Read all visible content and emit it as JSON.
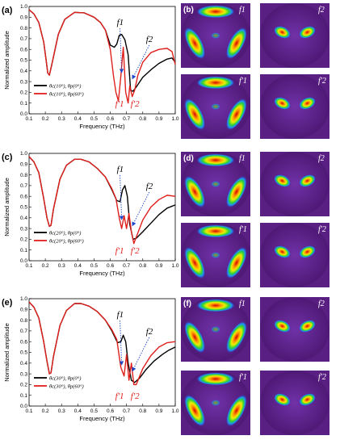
{
  "chart_data": [
    {
      "type": "line",
      "panel_label": "(a)",
      "xlabel": "Frequency (THz)",
      "ylabel": "Normalized amplitude",
      "xlim": [
        0.1,
        1.0
      ],
      "ylim": [
        0.0,
        1.0
      ],
      "xticks": [
        "0.1",
        "0.2",
        "0.3",
        "0.4",
        "0.5",
        "0.6",
        "0.7",
        "0.8",
        "0.9",
        "1.0"
      ],
      "yticks": [
        "0.0",
        "0.1",
        "0.2",
        "0.3",
        "0.4",
        "0.5",
        "0.6",
        "0.7",
        "0.8",
        "0.9",
        "1.0"
      ],
      "legend_position": "bottom-left",
      "series": [
        {
          "name": "θc(10°), θp(0°)",
          "color": "#000000",
          "x": [
            0.1,
            0.13,
            0.16,
            0.19,
            0.205,
            0.215,
            0.225,
            0.24,
            0.28,
            0.32,
            0.38,
            0.44,
            0.5,
            0.54,
            0.57,
            0.6,
            0.625,
            0.64,
            0.655,
            0.67,
            0.69,
            0.71,
            0.725,
            0.74,
            0.76,
            0.8,
            0.85,
            0.9,
            0.95,
            0.98,
            1.0
          ],
          "y": [
            0.97,
            0.93,
            0.85,
            0.67,
            0.5,
            0.38,
            0.36,
            0.46,
            0.74,
            0.88,
            0.945,
            0.94,
            0.9,
            0.85,
            0.78,
            0.64,
            0.62,
            0.65,
            0.73,
            0.74,
            0.69,
            0.55,
            0.22,
            0.21,
            0.25,
            0.34,
            0.41,
            0.47,
            0.51,
            0.52,
            0.48
          ]
        },
        {
          "name": "θc(10°), θp(60°)",
          "color": "#e0201c",
          "x": [
            0.1,
            0.13,
            0.16,
            0.19,
            0.205,
            0.215,
            0.225,
            0.24,
            0.28,
            0.32,
            0.38,
            0.44,
            0.5,
            0.54,
            0.57,
            0.6,
            0.62,
            0.635,
            0.65,
            0.665,
            0.68,
            0.695,
            0.71,
            0.72,
            0.735,
            0.75,
            0.77,
            0.8,
            0.85,
            0.9,
            0.95,
            0.98,
            1.0
          ],
          "y": [
            0.97,
            0.93,
            0.85,
            0.67,
            0.5,
            0.38,
            0.36,
            0.46,
            0.74,
            0.88,
            0.945,
            0.94,
            0.9,
            0.85,
            0.78,
            0.6,
            0.35,
            0.2,
            0.12,
            0.35,
            0.62,
            0.2,
            0.1,
            0.26,
            0.16,
            0.22,
            0.36,
            0.48,
            0.57,
            0.6,
            0.61,
            0.58,
            0.46
          ]
        }
      ],
      "annotations": {
        "f1": "f1",
        "f2": "f2",
        "f1p": "f'1",
        "f2p": "f'2"
      }
    },
    {
      "type": "line",
      "panel_label": "(c)",
      "xlabel": "Frequency (THz)",
      "ylabel": "Normalized amplitude",
      "xlim": [
        0.1,
        1.0
      ],
      "ylim": [
        0.0,
        1.0
      ],
      "xticks": [
        "0.1",
        "0.2",
        "0.3",
        "0.4",
        "0.5",
        "0.6",
        "0.7",
        "0.8",
        "0.9",
        "1.0"
      ],
      "yticks": [
        "0.0",
        "0.1",
        "0.2",
        "0.3",
        "0.4",
        "0.5",
        "0.6",
        "0.7",
        "0.8",
        "0.9",
        "1.0"
      ],
      "legend_position": "bottom-left",
      "series": [
        {
          "name": "θc(20°), θp(0°)",
          "color": "#000000",
          "x": [
            0.1,
            0.13,
            0.16,
            0.19,
            0.21,
            0.225,
            0.235,
            0.25,
            0.29,
            0.33,
            0.38,
            0.42,
            0.47,
            0.52,
            0.57,
            0.61,
            0.64,
            0.66,
            0.675,
            0.69,
            0.705,
            0.72,
            0.74,
            0.76,
            0.8,
            0.85,
            0.9,
            0.95,
            1.0
          ],
          "y": [
            0.97,
            0.92,
            0.82,
            0.58,
            0.4,
            0.32,
            0.33,
            0.48,
            0.76,
            0.89,
            0.945,
            0.945,
            0.92,
            0.86,
            0.78,
            0.66,
            0.56,
            0.55,
            0.66,
            0.7,
            0.6,
            0.34,
            0.2,
            0.21,
            0.27,
            0.35,
            0.43,
            0.49,
            0.52
          ]
        },
        {
          "name": "θc(20°), θp(60°)",
          "color": "#e0201c",
          "x": [
            0.1,
            0.13,
            0.16,
            0.19,
            0.21,
            0.225,
            0.235,
            0.25,
            0.29,
            0.33,
            0.38,
            0.42,
            0.47,
            0.52,
            0.57,
            0.61,
            0.635,
            0.655,
            0.67,
            0.685,
            0.7,
            0.715,
            0.73,
            0.745,
            0.76,
            0.8,
            0.85,
            0.9,
            0.95,
            1.0
          ],
          "y": [
            0.97,
            0.92,
            0.82,
            0.58,
            0.4,
            0.32,
            0.33,
            0.48,
            0.76,
            0.89,
            0.945,
            0.945,
            0.92,
            0.86,
            0.78,
            0.67,
            0.58,
            0.4,
            0.3,
            0.42,
            0.3,
            0.44,
            0.27,
            0.16,
            0.22,
            0.38,
            0.5,
            0.57,
            0.61,
            0.6
          ]
        }
      ],
      "annotations": {
        "f1": "f1",
        "f2": "f2",
        "f1p": "f'1",
        "f2p": "f'2"
      }
    },
    {
      "type": "line",
      "panel_label": "(e)",
      "xlabel": "Frequency (THz)",
      "ylabel": "Normalized amplitude",
      "xlim": [
        0.1,
        1.0
      ],
      "ylim": [
        0.0,
        1.0
      ],
      "xticks": [
        "0.1",
        "0.2",
        "0.3",
        "0.4",
        "0.5",
        "0.6",
        "0.7",
        "0.8",
        "0.9",
        "1.0"
      ],
      "yticks": [
        "0.0",
        "0.1",
        "0.2",
        "0.3",
        "0.4",
        "0.5",
        "0.6",
        "0.7",
        "0.8",
        "0.9",
        "1.0"
      ],
      "legend_position": "bottom-left",
      "series": [
        {
          "name": "θc(30°), θp(0°)",
          "color": "#000000",
          "x": [
            0.1,
            0.13,
            0.16,
            0.19,
            0.21,
            0.225,
            0.235,
            0.25,
            0.29,
            0.33,
            0.38,
            0.42,
            0.47,
            0.52,
            0.57,
            0.61,
            0.645,
            0.665,
            0.68,
            0.695,
            0.71,
            0.73,
            0.75,
            0.78,
            0.82,
            0.87,
            0.92,
            0.96,
            1.0
          ],
          "y": [
            0.97,
            0.92,
            0.82,
            0.6,
            0.42,
            0.3,
            0.31,
            0.46,
            0.75,
            0.89,
            0.955,
            0.955,
            0.93,
            0.88,
            0.8,
            0.7,
            0.59,
            0.6,
            0.66,
            0.6,
            0.4,
            0.24,
            0.22,
            0.26,
            0.34,
            0.42,
            0.48,
            0.52,
            0.55
          ]
        },
        {
          "name": "θc(30°), θp(60°)",
          "color": "#e0201c",
          "x": [
            0.1,
            0.13,
            0.16,
            0.19,
            0.21,
            0.225,
            0.235,
            0.25,
            0.29,
            0.33,
            0.38,
            0.42,
            0.47,
            0.52,
            0.57,
            0.61,
            0.64,
            0.665,
            0.685,
            0.7,
            0.715,
            0.73,
            0.745,
            0.76,
            0.8,
            0.85,
            0.9,
            0.95,
            1.0
          ],
          "y": [
            0.97,
            0.92,
            0.82,
            0.6,
            0.42,
            0.3,
            0.31,
            0.46,
            0.75,
            0.89,
            0.955,
            0.955,
            0.93,
            0.88,
            0.8,
            0.71,
            0.62,
            0.36,
            0.28,
            0.48,
            0.24,
            0.4,
            0.2,
            0.2,
            0.35,
            0.47,
            0.55,
            0.59,
            0.6
          ]
        }
      ],
      "annotations": {
        "f1": "f1",
        "f2": "f2",
        "f1p": "f'1",
        "f2p": "f'2"
      }
    }
  ],
  "field_maps": [
    {
      "panel_label": "(b)",
      "tiles": [
        "f1",
        "f2",
        "f'1",
        "f'2"
      ]
    },
    {
      "panel_label": "(d)",
      "tiles": [
        "f1",
        "f2",
        "f'1",
        "f'2"
      ]
    },
    {
      "panel_label": "(f)",
      "tiles": [
        "f1",
        "f2",
        "f'1",
        "f'2"
      ]
    }
  ],
  "colors": {
    "background_map": "#5a1f82",
    "series_black": "#000000",
    "series_red": "#e0201c",
    "arrow_blue": "#1e46c8"
  }
}
